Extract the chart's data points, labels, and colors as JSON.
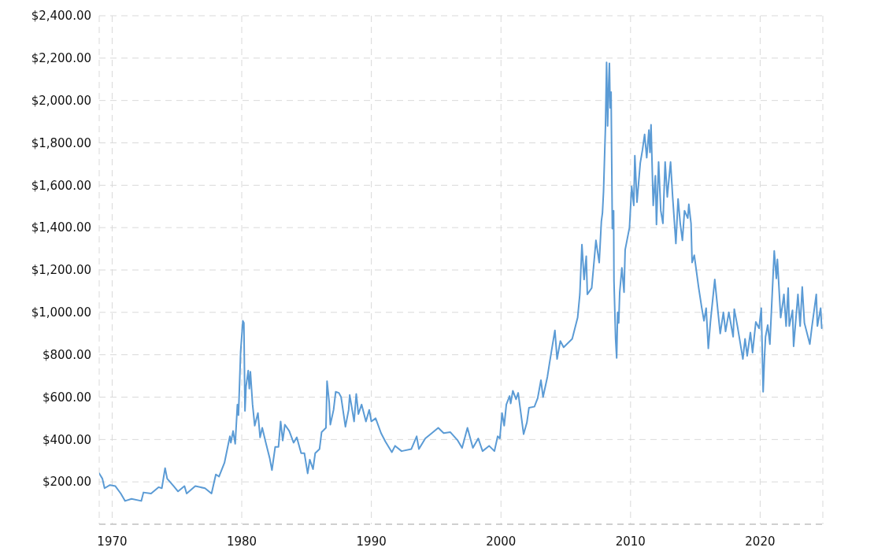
{
  "chart_data": {
    "type": "line",
    "x": [
      "1969-01",
      "1969-04",
      "1969-06",
      "1969-11",
      "1970-04",
      "1970-09",
      "1971-01",
      "1971-07",
      "1972-04",
      "1972-06",
      "1973-01",
      "1973-08",
      "1973-11",
      "1974-02",
      "1974-04",
      "1974-10",
      "1975-02",
      "1975-08",
      "1975-10",
      "1976-06",
      "1977-03",
      "1977-09",
      "1978-01",
      "1978-04",
      "1978-09",
      "1979-02",
      "1979-03",
      "1979-05",
      "1979-07",
      "1979-09",
      "1979-10",
      "1979-12",
      "1980-02",
      "1980-03",
      "1980-04",
      "1980-05",
      "1980-07",
      "1980-08",
      "1980-09",
      "1980-11",
      "1981-01",
      "1981-04",
      "1981-06",
      "1981-08",
      "1981-11",
      "1982-03",
      "1982-05",
      "1982-08",
      "1982-11",
      "1983-01",
      "1983-03",
      "1983-05",
      "1983-09",
      "1984-01",
      "1984-04",
      "1984-08",
      "1984-11",
      "1985-02",
      "1985-04",
      "1985-07",
      "1985-09",
      "1986-01",
      "1986-03",
      "1986-07",
      "1986-08",
      "1986-10",
      "1986-11",
      "1987-02",
      "1987-04",
      "1987-07",
      "1987-09",
      "1988-01",
      "1988-04",
      "1988-05",
      "1988-09",
      "1988-11",
      "1989-01",
      "1989-04",
      "1989-08",
      "1989-11",
      "1990-01",
      "1990-05",
      "1990-10",
      "1991-02",
      "1991-08",
      "1991-11",
      "1992-05",
      "1993-02",
      "1993-07",
      "1993-09",
      "1994-03",
      "1994-09",
      "1995-03",
      "1995-08",
      "1996-02",
      "1996-09",
      "1997-01",
      "1997-06",
      "1997-11",
      "1998-04",
      "1998-08",
      "1999-02",
      "1999-07",
      "1999-10",
      "1999-12",
      "2000-02",
      "2000-04",
      "2000-06",
      "2000-09",
      "2000-10",
      "2000-12",
      "2001-03",
      "2001-05",
      "2001-10",
      "2002-01",
      "2002-03",
      "2002-08",
      "2002-11",
      "2003-02",
      "2003-04",
      "2003-08",
      "2003-10",
      "2004-01",
      "2004-03",
      "2004-05",
      "2004-08",
      "2004-11",
      "2005-07",
      "2005-12",
      "2006-02",
      "2006-04",
      "2006-06",
      "2006-08",
      "2006-09",
      "2007-01",
      "2007-05",
      "2007-08",
      "2007-10",
      "2007-11",
      "2007-12",
      "2008-01-25",
      "2008-02-25",
      "2008-03-25",
      "2008-04-25",
      "2008-05-15",
      "2008-06-05",
      "2008-07-01",
      "2008-08-05",
      "2008-09-10",
      "2008-09-20",
      "2008-11-05",
      "2008-12-05",
      "2009-01-01",
      "2009-02",
      "2009-03",
      "2009-05",
      "2009-07",
      "2009-08",
      "2009-12",
      "2010-02",
      "2010-04",
      "2010-05",
      "2010-07",
      "2010-10",
      "2010-12",
      "2011-02",
      "2011-04",
      "2011-06",
      "2011-07",
      "2011-08",
      "2011-10",
      "2011-12",
      "2012-01",
      "2012-03",
      "2012-05",
      "2012-07",
      "2012-09",
      "2012-11",
      "2013-02",
      "2013-04",
      "2013-07",
      "2013-09",
      "2013-11",
      "2014-01",
      "2014-03",
      "2014-06",
      "2014-07",
      "2014-09",
      "2014-10",
      "2014-12",
      "2015-04",
      "2015-07",
      "2015-09",
      "2015-11",
      "2016-01",
      "2016-03",
      "2016-07",
      "2016-10",
      "2016-12",
      "2017-03",
      "2017-05",
      "2017-08",
      "2017-12",
      "2018-01",
      "2018-04",
      "2018-09",
      "2018-11",
      "2019-01",
      "2019-04",
      "2019-06",
      "2019-09",
      "2019-12",
      "2020-02-01",
      "2020-02-20",
      "2020-03-25",
      "2020-05",
      "2020-06",
      "2020-08",
      "2020-10",
      "2020-12",
      "2021-02",
      "2021-04",
      "2021-05",
      "2021-08",
      "2021-10",
      "2021-11",
      "2022-01",
      "2022-03",
      "2022-04",
      "2022-07",
      "2022-08",
      "2022-12",
      "2023-02",
      "2023-04",
      "2023-06",
      "2023-11",
      "2024-01",
      "2024-05",
      "2024-06",
      "2024-09",
      "2024-10"
    ],
    "series": [
      {
        "color": "#5b9bd5",
        "values": [
          240,
          215,
          170,
          185,
          180,
          145,
          110,
          120,
          110,
          150,
          145,
          175,
          170,
          265,
          215,
          180,
          155,
          180,
          145,
          180,
          170,
          145,
          235,
          225,
          290,
          415,
          385,
          440,
          380,
          565,
          515,
          815,
          960,
          950,
          535,
          650,
          725,
          640,
          720,
          565,
          465,
          525,
          410,
          455,
          390,
          310,
          255,
          365,
          365,
          485,
          395,
          470,
          440,
          385,
          410,
          335,
          335,
          240,
          305,
          260,
          335,
          355,
          435,
          455,
          675,
          575,
          470,
          540,
          625,
          620,
          600,
          460,
          540,
          610,
          485,
          615,
          520,
          565,
          485,
          540,
          485,
          500,
          430,
          390,
          340,
          370,
          345,
          355,
          415,
          355,
          405,
          430,
          455,
          430,
          435,
          395,
          360,
          455,
          360,
          405,
          345,
          370,
          345,
          415,
          405,
          525,
          465,
          565,
          605,
          570,
          630,
          590,
          620,
          425,
          480,
          550,
          555,
          595,
          680,
          600,
          695,
          760,
          855,
          915,
          780,
          865,
          835,
          875,
          975,
          1085,
          1320,
          1155,
          1265,
          1085,
          1115,
          1340,
          1235,
          1430,
          1470,
          1570,
          1880,
          2180,
          1880,
          2080,
          2175,
          1965,
          2040,
          1395,
          1480,
          1150,
          875,
          785,
          1000,
          950,
          1095,
          1210,
          1095,
          1295,
          1400,
          1595,
          1505,
          1740,
          1520,
          1705,
          1765,
          1840,
          1730,
          1860,
          1755,
          1885,
          1505,
          1645,
          1415,
          1710,
          1480,
          1420,
          1710,
          1545,
          1710,
          1545,
          1325,
          1535,
          1420,
          1340,
          1480,
          1445,
          1510,
          1420,
          1235,
          1270,
          1120,
          1020,
          960,
          1020,
          830,
          955,
          1155,
          1000,
          900,
          1000,
          910,
          1000,
          885,
          1015,
          935,
          780,
          875,
          795,
          905,
          810,
          955,
          925,
          1020,
          885,
          625,
          785,
          885,
          940,
          850,
          1070,
          1290,
          1160,
          1250,
          975,
          1045,
          1085,
          935,
          1115,
          935,
          1010,
          840,
          1085,
          935,
          1120,
          950,
          850,
          935,
          1085,
          935,
          1020,
          925
        ]
      }
    ],
    "xlim": [
      "1969-01",
      "2024-11"
    ],
    "xticks": [
      "1970",
      "1980",
      "1990",
      "2000",
      "2010",
      "2020"
    ],
    "ylim": [
      0,
      2400
    ],
    "yticks": [
      {
        "value": 200,
        "label": "$200.00"
      },
      {
        "value": 400,
        "label": "$400.00"
      },
      {
        "value": 600,
        "label": "$600.00"
      },
      {
        "value": 800,
        "label": "$800.00"
      },
      {
        "value": 1000,
        "label": "$1,000.00"
      },
      {
        "value": 1200,
        "label": "$1,200.00"
      },
      {
        "value": 1400,
        "label": "$1,400.00"
      },
      {
        "value": 1600,
        "label": "$1,600.00"
      },
      {
        "value": 1800,
        "label": "$1,800.00"
      },
      {
        "value": 2000,
        "label": "$2,000.00"
      },
      {
        "value": 2200,
        "label": "$2,200.00"
      },
      {
        "value": 2400,
        "label": "$2,400.00"
      }
    ],
    "grid": true
  }
}
